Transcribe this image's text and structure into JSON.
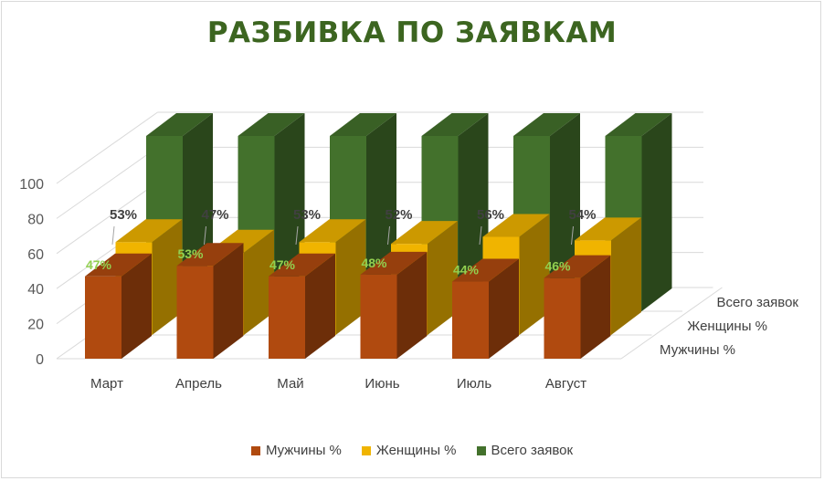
{
  "chart_data": {
    "type": "bar",
    "title": "РАЗБИВКА ПО ЗАЯВКАМ",
    "categories": [
      "Март",
      "Апрель",
      "Май",
      "Июнь",
      "Июль",
      "Август"
    ],
    "depth_labels": [
      "Мужчины %",
      "Женщины %",
      "Всего заявок"
    ],
    "ylim": [
      0,
      100
    ],
    "yticks": [
      "0",
      "20",
      "40",
      "60",
      "80",
      "100"
    ],
    "series": [
      {
        "name": "Мужчины %",
        "values": [
          47,
          53,
          47,
          48,
          44,
          46
        ],
        "labels": [
          "47%",
          "53%",
          "47%",
          "48%",
          "44%",
          "46%"
        ],
        "color": "#b04a0f",
        "label_color": "#92d050"
      },
      {
        "name": "Женщины %",
        "values": [
          53,
          47,
          53,
          52,
          56,
          54
        ],
        "labels": [
          "53%",
          "47%",
          "53%",
          "52%",
          "56%",
          "54%"
        ],
        "color": "#f0b400",
        "label_color": "#404040"
      },
      {
        "name": "Всего заявок",
        "values": [
          100,
          100,
          100,
          100,
          100,
          100
        ],
        "color": "#43712c"
      }
    ],
    "grid": true,
    "legend": "bottom"
  }
}
